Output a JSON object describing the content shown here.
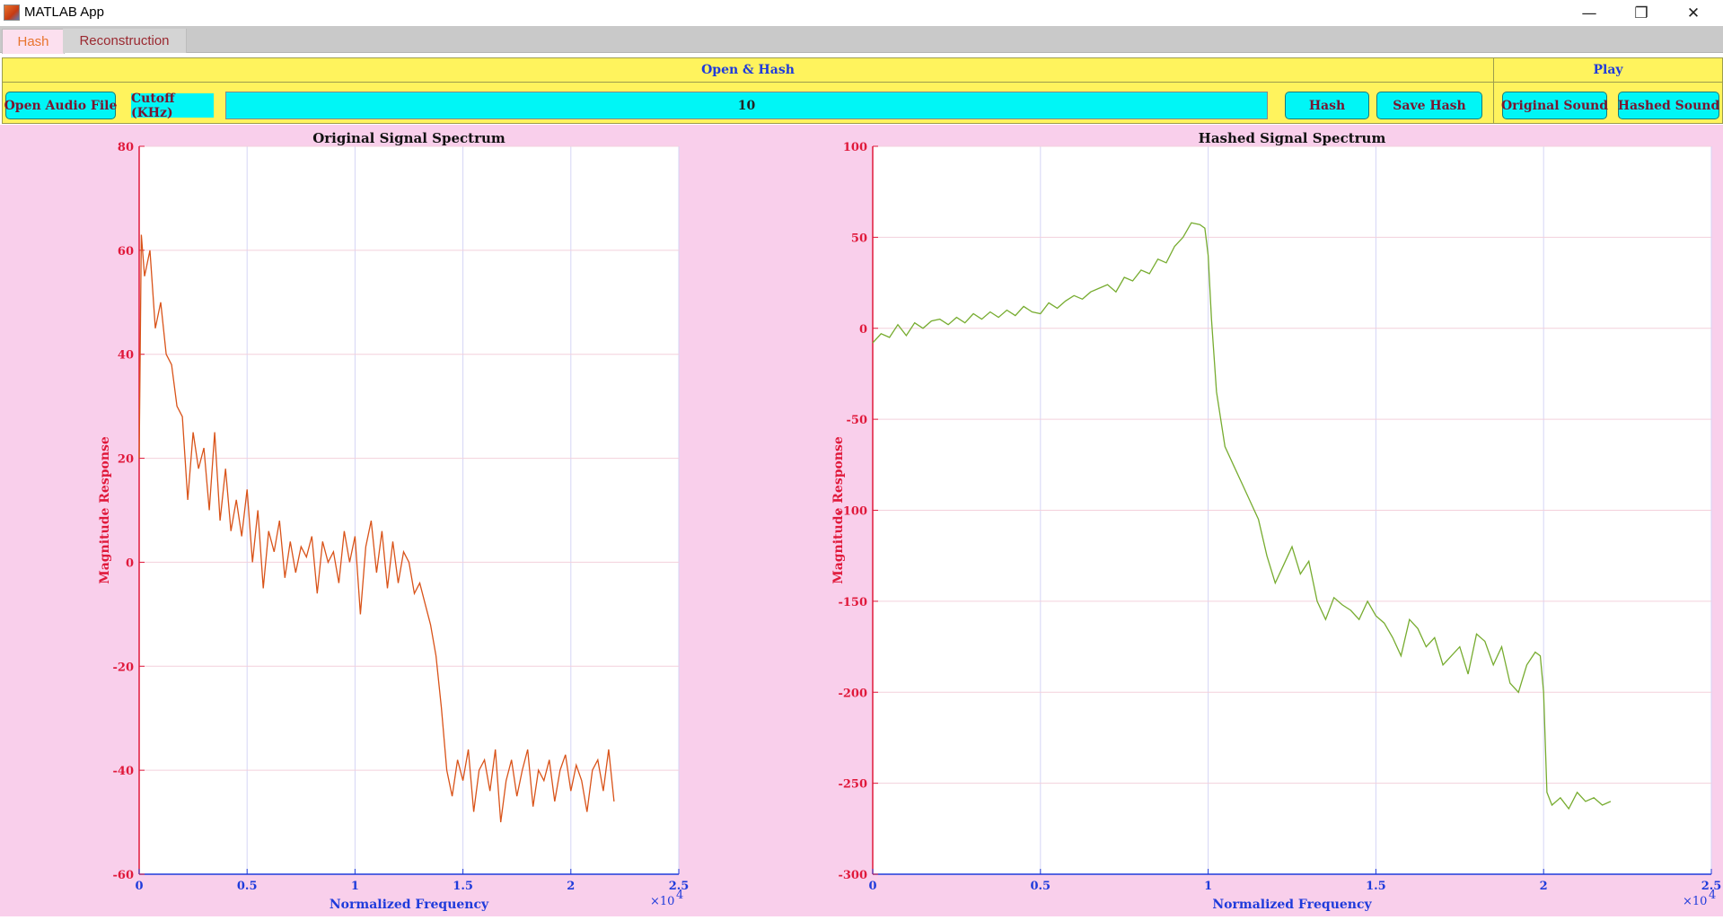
{
  "window": {
    "title": "MATLAB App",
    "minimize_glyph": "—",
    "restore_glyph": "❐",
    "close_glyph": "✕"
  },
  "tabs": [
    {
      "label": "Hash",
      "active": true
    },
    {
      "label": "Reconstruction",
      "active": false
    }
  ],
  "open_hash_panel": {
    "title": "Open & Hash",
    "open_button": "Open Audio File",
    "cutoff_label": "Cutoff (KHz)",
    "cutoff_value": "10",
    "hash_button": "Hash",
    "save_button": "Save Hash"
  },
  "play_panel": {
    "title": "Play",
    "original_button": "Original Sound",
    "hashed_button": "Hashed Sound"
  },
  "colors": {
    "panel_bg": "#fff35d",
    "button_bg": "#00f6f6",
    "plot_bg": "#f9cfeb",
    "original_line": "#d95319",
    "hashed_line": "#77ac30",
    "y_axis": "#e0193b",
    "x_axis": "#1f3bdb"
  },
  "chart_data": [
    {
      "type": "line",
      "title": "Original Signal Spectrum",
      "xlabel": "Normalized Frequency",
      "ylabel": "Magnitude Response",
      "x_exponent": "×10",
      "x_exponent_power": "4",
      "xlim": [
        0,
        25000
      ],
      "ylim": [
        -60,
        80
      ],
      "xticks": [
        0,
        5000,
        10000,
        15000,
        20000,
        25000
      ],
      "xtick_labels": [
        "0",
        "0.5",
        "1",
        "1.5",
        "2",
        "2.5"
      ],
      "yticks": [
        -60,
        -40,
        -20,
        0,
        20,
        40,
        60,
        80
      ],
      "ytick_labels": [
        "-60",
        "-40",
        "-20",
        "0",
        "20",
        "40",
        "60",
        "80"
      ],
      "grid": true,
      "color": "#d95319",
      "series": [
        {
          "x": [
            0,
            100,
            250,
            500,
            750,
            1000,
            1250,
            1500,
            1750,
            2000,
            2250,
            2500,
            2750,
            3000,
            3250,
            3500,
            3750,
            4000,
            4250,
            4500,
            4750,
            5000,
            5250,
            5500,
            5750,
            6000,
            6250,
            6500,
            6750,
            7000,
            7250,
            7500,
            7750,
            8000,
            8250,
            8500,
            8750,
            9000,
            9250,
            9500,
            9750,
            10000,
            10250,
            10500,
            10750,
            11000,
            11250,
            11500,
            11750,
            12000,
            12250,
            12500,
            12750,
            13000,
            13250,
            13500,
            13750,
            14000,
            14250,
            14500,
            14750,
            15000,
            15250,
            15500,
            15750,
            16000,
            16250,
            16500,
            16750,
            17000,
            17250,
            17500,
            17750,
            18000,
            18250,
            18500,
            18750,
            19000,
            19250,
            19500,
            19750,
            20000,
            20250,
            20500,
            20750,
            21000,
            21250,
            21500,
            21750,
            22000
          ],
          "y": [
            20,
            63,
            55,
            60,
            45,
            50,
            40,
            38,
            30,
            28,
            12,
            25,
            18,
            22,
            10,
            25,
            8,
            18,
            6,
            12,
            5,
            14,
            0,
            10,
            -5,
            6,
            2,
            8,
            -3,
            4,
            -2,
            3,
            1,
            5,
            -6,
            4,
            0,
            2,
            -4,
            6,
            0,
            5,
            -10,
            3,
            8,
            -2,
            6,
            -5,
            4,
            -4,
            2,
            0,
            -6,
            -4,
            -8,
            -12,
            -18,
            -28,
            -40,
            -45,
            -38,
            -42,
            -36,
            -48,
            -40,
            -38,
            -44,
            -36,
            -50,
            -42,
            -38,
            -45,
            -40,
            -36,
            -47,
            -40,
            -42,
            -38,
            -46,
            -40,
            -37,
            -44,
            -39,
            -42,
            -48,
            -40,
            -38,
            -44,
            -36,
            -46
          ]
        }
      ]
    },
    {
      "type": "line",
      "title": "Hashed Signal Spectrum",
      "xlabel": "Normalized Frequency",
      "ylabel": "Magnitude Response",
      "x_exponent": "×10",
      "x_exponent_power": "4",
      "xlim": [
        0,
        25000
      ],
      "ylim": [
        -300,
        100
      ],
      "xticks": [
        0,
        5000,
        10000,
        15000,
        20000,
        25000
      ],
      "xtick_labels": [
        "0",
        "0.5",
        "1",
        "1.5",
        "2",
        "2.5"
      ],
      "yticks": [
        -300,
        -250,
        -200,
        -150,
        -100,
        -50,
        0,
        50,
        100
      ],
      "ytick_labels": [
        "-300",
        "-250",
        "-200",
        "-150",
        "-100",
        "-50",
        "0",
        "50",
        "100"
      ],
      "grid": true,
      "color": "#77ac30",
      "series": [
        {
          "x": [
            0,
            250,
            500,
            750,
            1000,
            1250,
            1500,
            1750,
            2000,
            2250,
            2500,
            2750,
            3000,
            3250,
            3500,
            3750,
            4000,
            4250,
            4500,
            4750,
            5000,
            5250,
            5500,
            5750,
            6000,
            6250,
            6500,
            6750,
            7000,
            7250,
            7500,
            7750,
            8000,
            8250,
            8500,
            8750,
            9000,
            9250,
            9500,
            9750,
            9900,
            10000,
            10100,
            10250,
            10500,
            10750,
            11000,
            11250,
            11500,
            11750,
            12000,
            12250,
            12500,
            12750,
            13000,
            13250,
            13500,
            13750,
            14000,
            14250,
            14500,
            14750,
            15000,
            15250,
            15500,
            15750,
            16000,
            16250,
            16500,
            16750,
            17000,
            17250,
            17500,
            17750,
            18000,
            18250,
            18500,
            18750,
            19000,
            19250,
            19500,
            19750,
            19900,
            20000,
            20100,
            20250,
            20500,
            20750,
            21000,
            21250,
            21500,
            21750,
            22000
          ],
          "y": [
            -8,
            -3,
            -5,
            2,
            -4,
            3,
            0,
            4,
            5,
            2,
            6,
            3,
            8,
            5,
            9,
            6,
            10,
            7,
            12,
            9,
            8,
            14,
            11,
            15,
            18,
            16,
            20,
            22,
            24,
            20,
            28,
            26,
            32,
            30,
            38,
            36,
            45,
            50,
            58,
            57,
            55,
            40,
            5,
            -35,
            -65,
            -75,
            -85,
            -95,
            -105,
            -125,
            -140,
            -130,
            -120,
            -135,
            -128,
            -150,
            -160,
            -148,
            -152,
            -155,
            -160,
            -150,
            -158,
            -162,
            -170,
            -180,
            -160,
            -165,
            -175,
            -170,
            -185,
            -180,
            -175,
            -190,
            -168,
            -172,
            -185,
            -175,
            -195,
            -200,
            -185,
            -178,
            -180,
            -200,
            -255,
            -262,
            -258,
            -264,
            -255,
            -260,
            -258,
            -262,
            -260
          ]
        }
      ]
    }
  ]
}
